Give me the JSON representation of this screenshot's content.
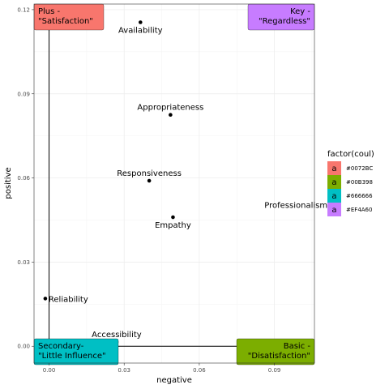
{
  "chart_data": {
    "type": "scatter",
    "xlabel": "negative",
    "ylabel": "positive",
    "xlim": [
      -0.006,
      0.106
    ],
    "ylim": [
      -0.006,
      0.122
    ],
    "x_ticks": [
      0.0,
      0.03,
      0.06,
      0.09
    ],
    "x_tick_labels": [
      "0.00",
      "0.03",
      "0.06",
      "0.09"
    ],
    "y_ticks": [
      0.0,
      0.03,
      0.06,
      0.09,
      0.12
    ],
    "y_tick_labels": [
      "0.00",
      "0.03",
      "0.06",
      "0.09",
      "0.12"
    ],
    "grid": true,
    "points": [
      {
        "label": "Availability",
        "x": 0.0365,
        "y": 0.1155,
        "label_pos": "below"
      },
      {
        "label": "Appropriateness",
        "x": 0.0485,
        "y": 0.0825,
        "label_pos": "above"
      },
      {
        "label": "Responsiveness",
        "x": 0.04,
        "y": 0.059,
        "label_pos": "above"
      },
      {
        "label": "Empathy",
        "x": 0.0495,
        "y": 0.046,
        "label_pos": "below"
      },
      {
        "label": "Professionalism",
        "x": 0.1125,
        "y": 0.0505,
        "label_pos": "left"
      },
      {
        "label": "Reliability",
        "x": -0.0015,
        "y": 0.017,
        "label_pos": "right"
      },
      {
        "label": "Accessibility",
        "x": 0.027,
        "y": 0.0015,
        "label_pos": "above"
      }
    ],
    "reference_lines": {
      "vertical_x": 0.0,
      "horizontal_y": 0.0
    },
    "quadrant_labels": [
      {
        "lines": [
          "Plus -",
          "\"Satisfaction\""
        ],
        "color": "#F8766D",
        "corner": "top-left"
      },
      {
        "lines": [
          "Key -",
          "\"Regardless\""
        ],
        "color": "#C77CFF",
        "corner": "top-right"
      },
      {
        "lines": [
          "Secondary-",
          "\"Little Influence\""
        ],
        "color": "#00BFC4",
        "corner": "bottom-left"
      },
      {
        "lines": [
          "Basic -",
          "\"Disatisfaction\""
        ],
        "color": "#7CAE00",
        "corner": "bottom-right"
      }
    ],
    "legend": {
      "title": "factor(coul)",
      "position": "right",
      "entries": [
        {
          "key": "a",
          "label": "#0072BC",
          "color": "#F8766D"
        },
        {
          "key": "a",
          "label": "#00B398",
          "color": "#7CAE00"
        },
        {
          "key": "a",
          "label": "#666666",
          "color": "#00BFC4"
        },
        {
          "key": "a",
          "label": "#EF4A60",
          "color": "#C77CFF"
        }
      ]
    }
  }
}
